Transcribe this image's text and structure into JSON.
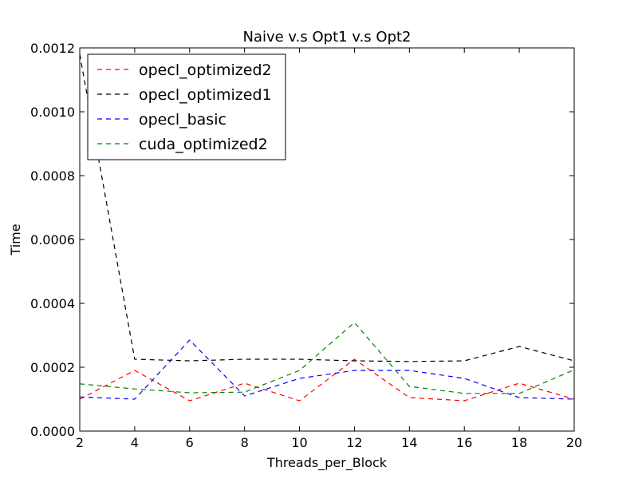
{
  "chart_data": {
    "type": "line",
    "title": "Naive v.s Opt1 v.s Opt2",
    "xlabel": "Threads_per_Block",
    "ylabel": "Time",
    "xlim": [
      2,
      20
    ],
    "ylim": [
      0,
      0.0012
    ],
    "x": [
      2,
      4,
      6,
      8,
      10,
      12,
      14,
      16,
      18,
      20
    ],
    "xticks": [
      "2",
      "4",
      "6",
      "8",
      "10",
      "12",
      "14",
      "16",
      "18",
      "20"
    ],
    "yticks": [
      "0.0000",
      "0.0002",
      "0.0004",
      "0.0006",
      "0.0008",
      "0.0010",
      "0.0012"
    ],
    "legend_position": "top-left",
    "grid": false,
    "line_style": "dashed",
    "series": [
      {
        "name": "opecl_optimized2",
        "color": "#ff0000",
        "values": [
          0.0001,
          0.00019,
          9.5e-05,
          0.00015,
          9.5e-05,
          0.000225,
          0.000105,
          9.5e-05,
          0.00015,
          0.0001
        ]
      },
      {
        "name": "opecl_optimized1",
        "color": "#000000",
        "values": [
          0.00118,
          0.000225,
          0.00022,
          0.000225,
          0.000225,
          0.00022,
          0.000218,
          0.00022,
          0.000265,
          0.00022
        ]
      },
      {
        "name": "opecl_basic",
        "color": "#0000ff",
        "values": [
          0.000107,
          0.0001,
          0.000285,
          0.00011,
          0.000165,
          0.00019,
          0.00019,
          0.000165,
          0.000105,
          0.0001
        ]
      },
      {
        "name": "cuda_optimized2",
        "color": "#008000",
        "values": [
          0.000148,
          0.000132,
          0.00012,
          0.000122,
          0.00019,
          0.00034,
          0.00014,
          0.000118,
          0.000118,
          0.000192
        ]
      }
    ]
  }
}
